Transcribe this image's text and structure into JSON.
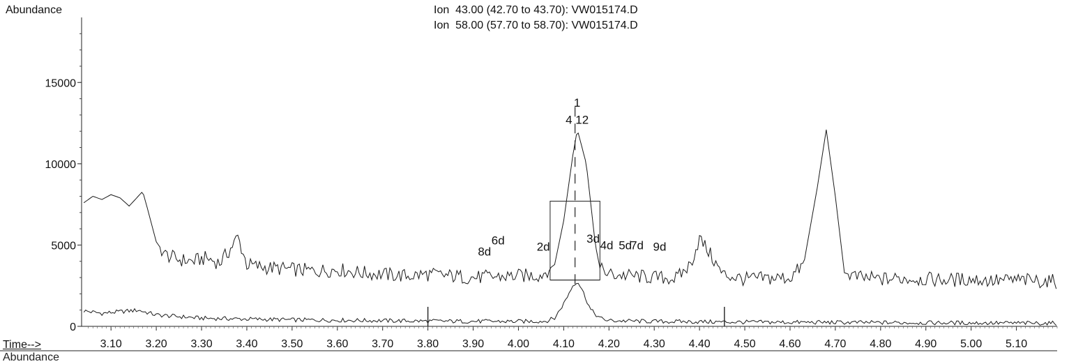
{
  "chart_data": {
    "type": "line",
    "ylabel": "Abundance",
    "xlabel": "Time-->",
    "title_lines": [
      "Ion  43.00 (42.70 to 43.70): VW015174.D",
      "Ion  58.00 (57.70 to 58.70): VW015174.D"
    ],
    "xlim": [
      3.035,
      5.19
    ],
    "ylim": [
      0,
      19000
    ],
    "x_ticks": [
      "3.10",
      "3.20",
      "3.30",
      "3.40",
      "3.50",
      "3.60",
      "3.70",
      "3.80",
      "3.90",
      "4.00",
      "4.10",
      "4.20",
      "4.30",
      "4.40",
      "4.50",
      "4.60",
      "4.70",
      "4.80",
      "4.90",
      "5.00",
      "5.10"
    ],
    "y_ticks": [
      "0",
      "5000",
      "10000",
      "15000"
    ],
    "grid": false,
    "series": [
      {
        "name": "Ion 43.00",
        "x": [
          3.04,
          3.06,
          3.08,
          3.1,
          3.12,
          3.14,
          3.16,
          3.17,
          3.18,
          3.2,
          3.22,
          3.25,
          3.28,
          3.31,
          3.34,
          3.36,
          3.38,
          3.4,
          3.42,
          3.45,
          3.5,
          3.55,
          3.6,
          3.65,
          3.7,
          3.75,
          3.8,
          3.85,
          3.9,
          3.95,
          4.0,
          4.05,
          4.08,
          4.1,
          4.12,
          4.13,
          4.15,
          4.17,
          4.18,
          4.2,
          4.25,
          4.3,
          4.35,
          4.38,
          4.4,
          4.42,
          4.45,
          4.5,
          4.55,
          4.6,
          4.63,
          4.66,
          4.68,
          4.7,
          4.72,
          4.75,
          4.8,
          4.85,
          4.9,
          4.95,
          5.0,
          5.05,
          5.1,
          5.15,
          5.19
        ],
        "y": [
          7600,
          8000,
          7800,
          8100,
          7900,
          7400,
          8000,
          8300,
          7300,
          5200,
          4400,
          4100,
          4000,
          4200,
          3900,
          4600,
          5500,
          3800,
          3700,
          3600,
          3500,
          3400,
          3500,
          3300,
          3200,
          3100,
          3200,
          3100,
          3000,
          3050,
          3100,
          3150,
          3800,
          6500,
          10500,
          12100,
          10000,
          5000,
          3600,
          3200,
          3100,
          3000,
          2950,
          3800,
          5400,
          4600,
          3200,
          2900,
          2950,
          3000,
          3800,
          8500,
          12100,
          8000,
          3300,
          3000,
          2900,
          2950,
          2900,
          2850,
          2900,
          2800,
          2850,
          2800,
          2750
        ]
      },
      {
        "name": "Ion 58.00",
        "x": [
          3.04,
          3.08,
          3.12,
          3.16,
          3.2,
          3.3,
          3.4,
          3.5,
          3.6,
          3.7,
          3.8,
          3.9,
          4.0,
          4.06,
          4.08,
          4.1,
          4.12,
          4.13,
          4.14,
          4.16,
          4.18,
          4.2,
          4.3,
          4.4,
          4.5,
          4.6,
          4.7,
          4.8,
          4.9,
          5.0,
          5.1,
          5.19
        ],
        "y": [
          950,
          800,
          900,
          1000,
          700,
          500,
          450,
          400,
          380,
          350,
          320,
          310,
          300,
          320,
          500,
          1400,
          2500,
          2800,
          2300,
          1000,
          500,
          350,
          300,
          280,
          260,
          250,
          240,
          230,
          220,
          210,
          200,
          190
        ]
      }
    ],
    "peak_labels": [
      {
        "text": "8d",
        "x": 3.925,
        "y": 4350
      },
      {
        "text": "6d",
        "x": 3.955,
        "y": 5050
      },
      {
        "text": "2d",
        "x": 4.055,
        "y": 4650
      },
      {
        "text": "3d",
        "x": 4.165,
        "y": 5150
      },
      {
        "text": "4d",
        "x": 4.195,
        "y": 4750
      },
      {
        "text": "5d",
        "x": 4.236,
        "y": 4750
      },
      {
        "text": "7d",
        "x": 4.262,
        "y": 4750
      },
      {
        "text": "9d",
        "x": 4.312,
        "y": 4650
      }
    ],
    "peak_id": {
      "top": "1",
      "bottom": "4 12",
      "x": 4.125
    },
    "integration": {
      "x_start": 4.07,
      "x_end": 4.18,
      "baseline": 2850,
      "apex": 12100
    },
    "integration_window": {
      "start": 3.8,
      "end": 4.455
    },
    "next_panel_label": "Abundance"
  }
}
